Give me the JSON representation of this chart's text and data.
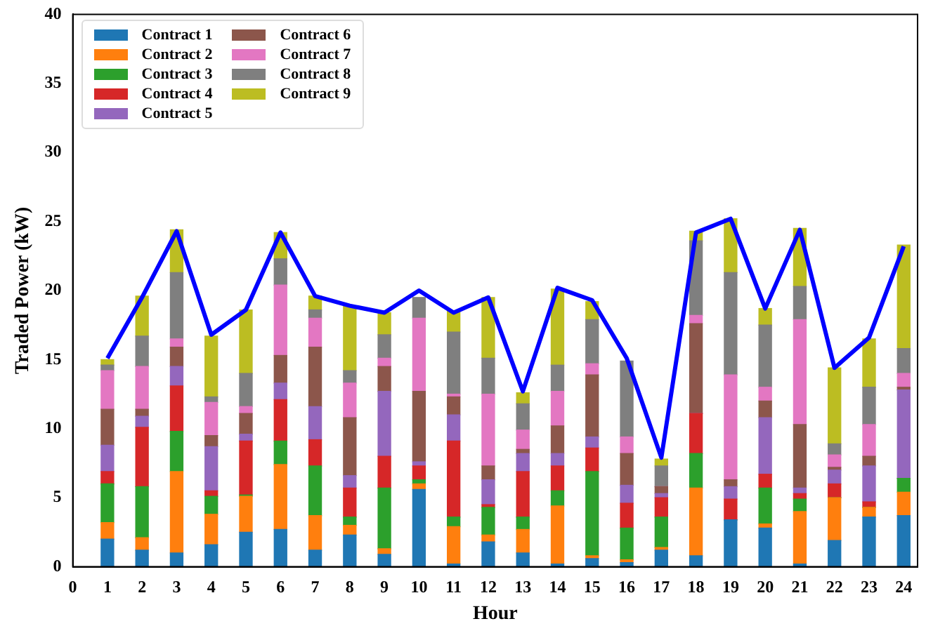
{
  "chart_data": {
    "type": "bar",
    "xlabel": "Hour",
    "ylabel": "Traded Power (kW)",
    "stacked": true,
    "grid": false,
    "legend": "top left",
    "x": [
      1,
      2,
      3,
      4,
      5,
      6,
      7,
      8,
      9,
      10,
      11,
      12,
      13,
      14,
      15,
      16,
      17,
      18,
      19,
      20,
      21,
      22,
      23,
      24
    ],
    "xlim": [
      0,
      24.4
    ],
    "xticks": [
      0,
      1,
      2,
      3,
      4,
      5,
      6,
      7,
      8,
      9,
      10,
      11,
      12,
      13,
      14,
      15,
      16,
      17,
      18,
      19,
      20,
      21,
      22,
      23,
      24
    ],
    "ylim": [
      0,
      40
    ],
    "yticks": [
      0,
      5,
      10,
      15,
      20,
      25,
      30,
      35,
      40
    ],
    "series": [
      {
        "name": "Contract 1",
        "color": "#1f77b4",
        "values": [
          2.0,
          1.2,
          1.0,
          1.6,
          2.5,
          2.7,
          1.2,
          2.3,
          0.9,
          5.6,
          0.2,
          1.8,
          1.0,
          0.2,
          0.6,
          0.3,
          1.2,
          0.8,
          3.4,
          2.8,
          0.2,
          1.9,
          3.6,
          3.7
        ]
      },
      {
        "name": "Contract 2",
        "color": "#ff7f0e",
        "values": [
          1.2,
          0.9,
          5.9,
          2.2,
          2.6,
          4.7,
          2.5,
          0.7,
          0.4,
          0.4,
          2.7,
          0.5,
          1.7,
          4.2,
          0.2,
          0.2,
          0.2,
          4.9,
          0,
          0.3,
          3.8,
          3.1,
          0.7,
          1.7
        ]
      },
      {
        "name": "Contract 3",
        "color": "#2ca02c",
        "values": [
          2.8,
          3.7,
          2.9,
          1.3,
          0.1,
          1.7,
          3.6,
          0.6,
          4.4,
          0.3,
          0.7,
          2.0,
          0.9,
          1.1,
          6.1,
          2.3,
          2.2,
          2.5,
          0,
          2.6,
          0.9,
          0,
          0,
          1.0
        ]
      },
      {
        "name": "Contract 4",
        "color": "#d62728",
        "values": [
          0.9,
          4.3,
          3.3,
          0.4,
          3.9,
          3.0,
          1.9,
          2.1,
          2.3,
          1.0,
          5.5,
          0.2,
          3.3,
          1.8,
          1.7,
          1.8,
          1.4,
          2.9,
          1.5,
          1.0,
          0.4,
          1.0,
          0.4,
          0
        ]
      },
      {
        "name": "Contract 5",
        "color": "#9467bd",
        "values": [
          1.9,
          0.8,
          1.4,
          3.2,
          0.5,
          1.2,
          2.4,
          0.9,
          4.7,
          0.3,
          1.9,
          1.8,
          1.3,
          0.9,
          0.8,
          1.3,
          0.3,
          0,
          0.9,
          4.1,
          0.4,
          1.0,
          2.6,
          6.4
        ]
      },
      {
        "name": "Contract 6",
        "color": "#8c564b",
        "values": [
          2.6,
          0.5,
          1.4,
          0.8,
          1.5,
          2.0,
          4.3,
          4.2,
          1.8,
          5.1,
          1.3,
          1.0,
          0.3,
          2.0,
          4.5,
          2.3,
          0.5,
          6.5,
          0.5,
          1.2,
          4.6,
          0.2,
          0.7,
          0.2
        ]
      },
      {
        "name": "Contract 7",
        "color": "#e377c2",
        "values": [
          2.8,
          3.1,
          0.6,
          2.4,
          0.5,
          5.1,
          2.1,
          2.5,
          0.6,
          5.3,
          0.2,
          5.2,
          1.4,
          2.5,
          0.8,
          1.2,
          0,
          0.6,
          7.6,
          1.0,
          7.6,
          0.9,
          2.3,
          1.0
        ]
      },
      {
        "name": "Contract 8",
        "color": "#7f7f7f",
        "values": [
          0.4,
          2.2,
          4.8,
          0.4,
          2.4,
          1.9,
          0.6,
          0.9,
          1.7,
          1.5,
          4.5,
          2.6,
          1.9,
          1.9,
          3.2,
          5.5,
          1.5,
          5.4,
          7.4,
          4.5,
          2.4,
          0.8,
          2.7,
          1.8
        ]
      },
      {
        "name": "Contract 9",
        "color": "#bcbd22",
        "values": [
          0.4,
          2.9,
          3.1,
          4.4,
          4.6,
          1.9,
          1.0,
          4.7,
          1.6,
          null,
          1.5,
          4.4,
          0.8,
          5.5,
          1.3,
          null,
          0.5,
          0.7,
          3.9,
          1.2,
          4.2,
          5.5,
          3.5,
          7.5
        ]
      },
      {
        "type": "line",
        "color": "#0000ff",
        "values": [
          15.1,
          19.5,
          24.3,
          16.8,
          18.6,
          24.2,
          19.6,
          18.9,
          18.4,
          20.0,
          18.4,
          19.5,
          12.7,
          20.2,
          19.3,
          15.1,
          7.9,
          24.2,
          25.2,
          18.7,
          24.4,
          14.4,
          16.6,
          23.2
        ]
      }
    ]
  }
}
